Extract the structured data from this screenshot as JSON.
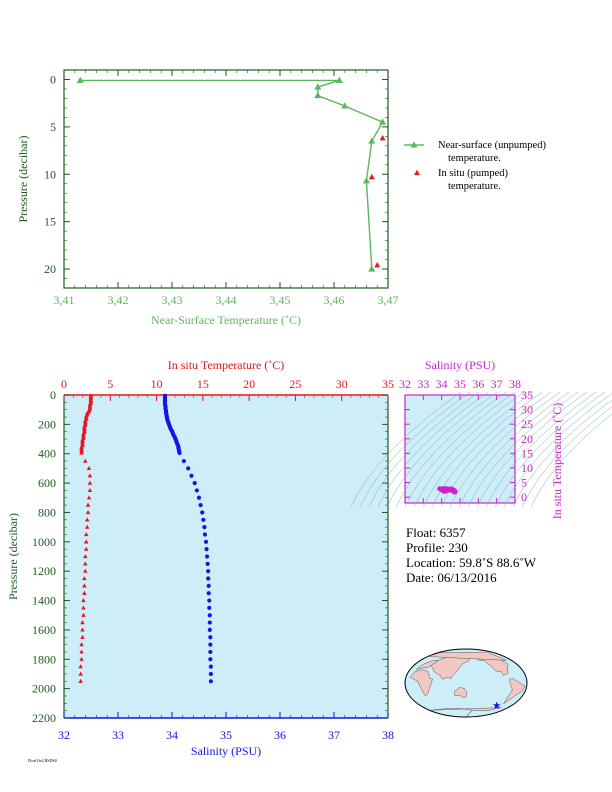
{
  "colors": {
    "near_surface": "#5cb85c",
    "in_situ_red": "#e8141e",
    "salinity_blue": "#1414e6",
    "plot_bg": "#cdeef8",
    "magenta": "#cc22cc",
    "axis_green": "#1e5a1e",
    "land": "#f2c8c2",
    "ocean": "#cdeef8"
  },
  "chart_data": [
    {
      "type": "line",
      "id": "near-surface-profile",
      "xlabel": "Near-Surface Temperature (˚C)",
      "ylabel": "Pressure (decibar)",
      "xlim": [
        3.41,
        3.47
      ],
      "ylim": [
        22,
        -1
      ],
      "xticks": [
        "3,41",
        "3,42",
        "3,43",
        "3,44",
        "3,45",
        "3,46",
        "3,47"
      ],
      "xtick_values": [
        3.41,
        3.42,
        3.43,
        3.44,
        3.45,
        3.46,
        3.47
      ],
      "yticks": [
        "0",
        "5",
        "10",
        "15",
        "20"
      ],
      "ytick_values": [
        0,
        5,
        10,
        15,
        20
      ],
      "series": [
        {
          "name": "Near-surface (unpumped)",
          "name_line2": "temperature.",
          "marker": "triangle",
          "x": [
            3.413,
            3.461,
            3.457,
            3.457,
            3.462,
            3.469,
            3.467,
            3.466,
            3.467
          ],
          "y": [
            0.1,
            0.1,
            0.8,
            1.7,
            2.8,
            4.5,
            6.5,
            10.7,
            20.0
          ]
        },
        {
          "name": "In situ (pumped)",
          "name_line2": "temperature.",
          "marker": "triangle",
          "x": [
            3.469,
            3.467,
            3.468
          ],
          "y": [
            6.2,
            10.3,
            19.6
          ]
        }
      ],
      "legend": "right"
    },
    {
      "type": "scatter",
      "id": "deep-profile",
      "xlabel": "Salinity (PSU)",
      "x2label": "In situ Temperature (˚C)",
      "ylabel": "Pressure (decibar)",
      "xlim": [
        32,
        38
      ],
      "x2lim": [
        0,
        35
      ],
      "ylim": [
        2200,
        0
      ],
      "xticks": [
        "32",
        "33",
        "34",
        "35",
        "36",
        "37",
        "38"
      ],
      "xtick_values": [
        32,
        33,
        34,
        35,
        36,
        37,
        38
      ],
      "x2ticks": [
        "0",
        "5",
        "10",
        "15",
        "20",
        "25",
        "30",
        "35"
      ],
      "x2tick_values": [
        0,
        5,
        10,
        15,
        20,
        25,
        30,
        35
      ],
      "yticks": [
        "0",
        "200",
        "400",
        "600",
        "800",
        "1000",
        "1200",
        "1400",
        "1600",
        "1800",
        "2000",
        "2200"
      ],
      "ytick_values": [
        0,
        200,
        400,
        600,
        800,
        1000,
        1200,
        1400,
        1600,
        1800,
        2000,
        2200
      ],
      "series": [
        {
          "axis": "temperature",
          "marker": "triangle",
          "pressure": [
            5,
            15,
            25,
            35,
            45,
            55,
            65,
            75,
            85,
            95,
            105,
            115,
            125,
            135,
            145,
            155,
            165,
            175,
            185,
            195,
            205,
            215,
            225,
            235,
            245,
            255,
            265,
            275,
            285,
            295,
            305,
            315,
            325,
            335,
            345,
            355,
            365,
            375,
            385,
            395,
            450,
            500,
            550,
            600,
            650,
            700,
            750,
            800,
            850,
            900,
            950,
            1000,
            1050,
            1100,
            1150,
            1200,
            1250,
            1300,
            1350,
            1400,
            1450,
            1500,
            1550,
            1600,
            1650,
            1700,
            1750,
            1800,
            1850,
            1900,
            1950
          ],
          "values": [
            2.9,
            2.9,
            2.9,
            2.9,
            2.9,
            2.9,
            2.8,
            2.8,
            2.8,
            2.8,
            2.7,
            2.7,
            2.5,
            2.5,
            2.4,
            2.4,
            2.4,
            2.3,
            2.3,
            2.3,
            2.3,
            2.2,
            2.2,
            2.2,
            2.2,
            2.2,
            2.1,
            2.1,
            2.1,
            2.1,
            2.0,
            2.0,
            2.0,
            2.0,
            2.0,
            1.9,
            1.9,
            1.9,
            1.9,
            1.9,
            2.3,
            2.7,
            2.8,
            2.8,
            2.8,
            2.7,
            2.6,
            2.6,
            2.5,
            2.5,
            2.4,
            2.4,
            2.4,
            2.3,
            2.3,
            2.3,
            2.2,
            2.2,
            2.2,
            2.1,
            2.1,
            2.1,
            2.0,
            2.0,
            2.0,
            1.9,
            1.9,
            1.9,
            1.8,
            1.8,
            1.8
          ]
        },
        {
          "axis": "salinity",
          "marker": "dot",
          "pressure": [
            5,
            15,
            25,
            35,
            45,
            55,
            65,
            75,
            85,
            95,
            105,
            115,
            125,
            135,
            145,
            155,
            165,
            175,
            185,
            195,
            205,
            215,
            225,
            235,
            245,
            255,
            265,
            275,
            285,
            295,
            305,
            315,
            325,
            335,
            345,
            355,
            365,
            375,
            385,
            395,
            450,
            500,
            550,
            600,
            650,
            700,
            750,
            800,
            850,
            900,
            950,
            1000,
            1050,
            1100,
            1150,
            1200,
            1250,
            1300,
            1350,
            1400,
            1450,
            1500,
            1550,
            1600,
            1650,
            1700,
            1750,
            1800,
            1850,
            1900,
            1950
          ],
          "values": [
            33.87,
            33.87,
            33.87,
            33.87,
            33.87,
            33.87,
            33.87,
            33.88,
            33.88,
            33.88,
            33.89,
            33.89,
            33.89,
            33.9,
            33.9,
            33.91,
            33.91,
            33.92,
            33.93,
            33.94,
            33.95,
            33.96,
            33.97,
            33.98,
            34.0,
            34.01,
            34.02,
            34.03,
            34.05,
            34.06,
            34.07,
            34.08,
            34.09,
            34.1,
            34.11,
            34.12,
            34.12,
            34.13,
            34.13,
            34.14,
            34.22,
            34.3,
            34.36,
            34.42,
            34.46,
            34.5,
            34.53,
            34.56,
            34.58,
            34.6,
            34.61,
            34.63,
            34.64,
            34.65,
            34.66,
            34.67,
            34.67,
            34.68,
            34.68,
            34.69,
            34.69,
            34.7,
            34.7,
            34.7,
            34.71,
            34.71,
            34.71,
            34.71,
            34.72,
            34.72,
            34.72
          ]
        }
      ]
    },
    {
      "type": "scatter",
      "id": "ts-diagram",
      "xlabel": "Salinity (PSU)",
      "ylabel": "In situ Temperature (˚C)",
      "xlim": [
        32,
        38
      ],
      "ylim": [
        -2,
        35
      ],
      "xticks": [
        "32",
        "33",
        "34",
        "35",
        "36",
        "37",
        "38"
      ],
      "xtick_values": [
        32,
        33,
        34,
        35,
        36,
        37,
        38
      ],
      "yticks": [
        "0",
        "5",
        "10",
        "15",
        "20",
        "25",
        "30",
        "35"
      ],
      "ytick_values": [
        0,
        5,
        10,
        15,
        20,
        25,
        30,
        35
      ],
      "points": {
        "x": [
          33.9,
          33.95,
          34.0,
          34.05,
          34.1,
          34.15,
          34.2,
          34.3,
          34.4,
          34.5,
          34.55,
          34.6,
          34.65,
          34.7,
          34.72,
          34.7,
          34.68,
          34.6,
          34.5,
          34.4,
          34.3,
          34.2,
          34.1
        ],
        "y": [
          2.9,
          2.8,
          2.6,
          2.4,
          2.2,
          2.0,
          2.1,
          2.3,
          2.6,
          2.8,
          2.7,
          2.6,
          2.4,
          2.2,
          1.9,
          1.8,
          1.9,
          2.2,
          2.5,
          2.7,
          2.8,
          2.9,
          2.9
        ]
      }
    }
  ],
  "info": {
    "float": "Float:  6357",
    "profile": "Profile:  230",
    "location": "Location:  59.8˚S  88.6˚W",
    "date": "Date:  06/13/2016"
  },
  "map": {
    "marker_icon": "star-icon",
    "marker_lon": -88.6,
    "marker_lat": -59.8
  },
  "footnote": "FloatViz2 BSDS0"
}
